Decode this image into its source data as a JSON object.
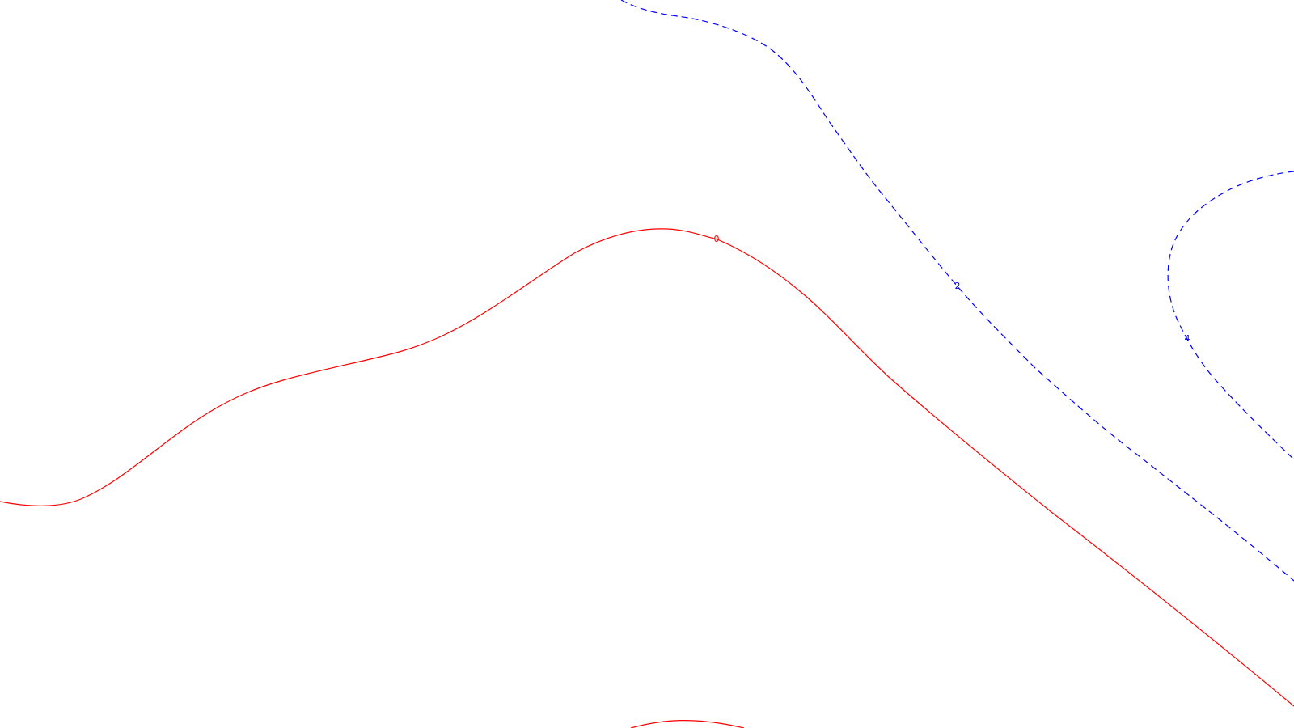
{
  "chart_data": {
    "type": "contour",
    "title": "",
    "xlabel": "",
    "ylabel": "",
    "axes_visible": false,
    "grid": false,
    "legend": "none",
    "contours": [
      {
        "level": 0,
        "label": "0",
        "color": "#ff0000",
        "style": "solid"
      },
      {
        "level": 2,
        "label": "2",
        "color": "#0000ff",
        "style": "dashed"
      },
      {
        "level": 4,
        "label": "4",
        "color": "#0000ff",
        "style": "dashed"
      }
    ]
  }
}
